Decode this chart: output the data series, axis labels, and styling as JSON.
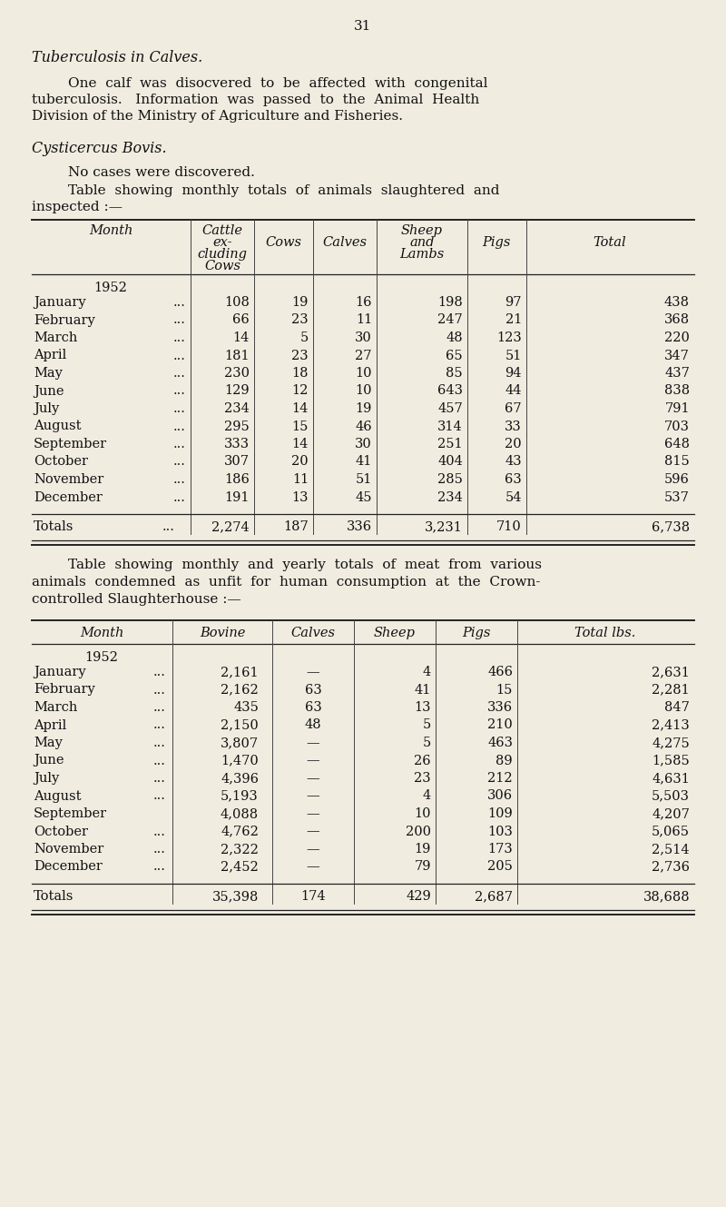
{
  "page_number": "31",
  "bg_color": "#f0ece0",
  "text_color": "#1a1a1a",
  "title1": "Tuberculosis in Calves.",
  "title2": "Cysticercus Bovis.",
  "para2": "No cases were discovered.",
  "table1_months": [
    "January",
    "February",
    "March",
    "April",
    "May",
    "June",
    "July",
    "August",
    "September",
    "October",
    "November",
    "December"
  ],
  "table1_cattle": [
    "108",
    "66",
    "14",
    "181",
    "230",
    "129",
    "234",
    "295",
    "333",
    "307",
    "186",
    "191"
  ],
  "table1_cows": [
    "19",
    "23",
    "5",
    "23",
    "18",
    "12",
    "14",
    "15",
    "14",
    "20",
    "11",
    "13"
  ],
  "table1_calves": [
    "16",
    "11",
    "30",
    "27",
    "10",
    "10",
    "19",
    "46",
    "30",
    "41",
    "51",
    "45"
  ],
  "table1_sheep": [
    "198",
    "247",
    "48",
    "65",
    "85",
    "643",
    "457",
    "314",
    "251",
    "404",
    "285",
    "234"
  ],
  "table1_pigs": [
    "97",
    "21",
    "123",
    "51",
    "94",
    "44",
    "67",
    "33",
    "20",
    "43",
    "63",
    "54"
  ],
  "table1_total": [
    "438",
    "368",
    "220",
    "347",
    "437",
    "838",
    "791",
    "703",
    "648",
    "815",
    "596",
    "537"
  ],
  "table2_months": [
    "January",
    "February",
    "March",
    "April",
    "May",
    "June",
    "July",
    "August",
    "September",
    "October",
    "November",
    "December"
  ],
  "table2_dots": [
    "...",
    "...",
    "...",
    "...",
    "...",
    "...",
    "...",
    "...",
    "",
    "...",
    "...",
    "..."
  ],
  "table2_bovine": [
    "2,161",
    "2,162",
    "435",
    "2,150",
    "3,807",
    "1,470",
    "4,396",
    "5,193",
    "4,088",
    "4,762",
    "2,322",
    "2,452"
  ],
  "table2_calves": [
    "—",
    "63",
    "63",
    "48",
    "—",
    "—",
    "—",
    "—",
    "—",
    "—",
    "—",
    "—"
  ],
  "table2_sheep": [
    "4",
    "41",
    "13",
    "5",
    "5",
    "26",
    "23",
    "4",
    "10",
    "200",
    "19",
    "79"
  ],
  "table2_pigs": [
    "466",
    "15",
    "336",
    "210",
    "463",
    "89",
    "212",
    "306",
    "109",
    "103",
    "173",
    "205"
  ],
  "table2_total": [
    "2,631",
    "2,281",
    "847",
    "2,413",
    "4,275",
    "1,585",
    "4,631",
    "5,503",
    "4,207",
    "5,065",
    "2,514",
    "2,736"
  ]
}
